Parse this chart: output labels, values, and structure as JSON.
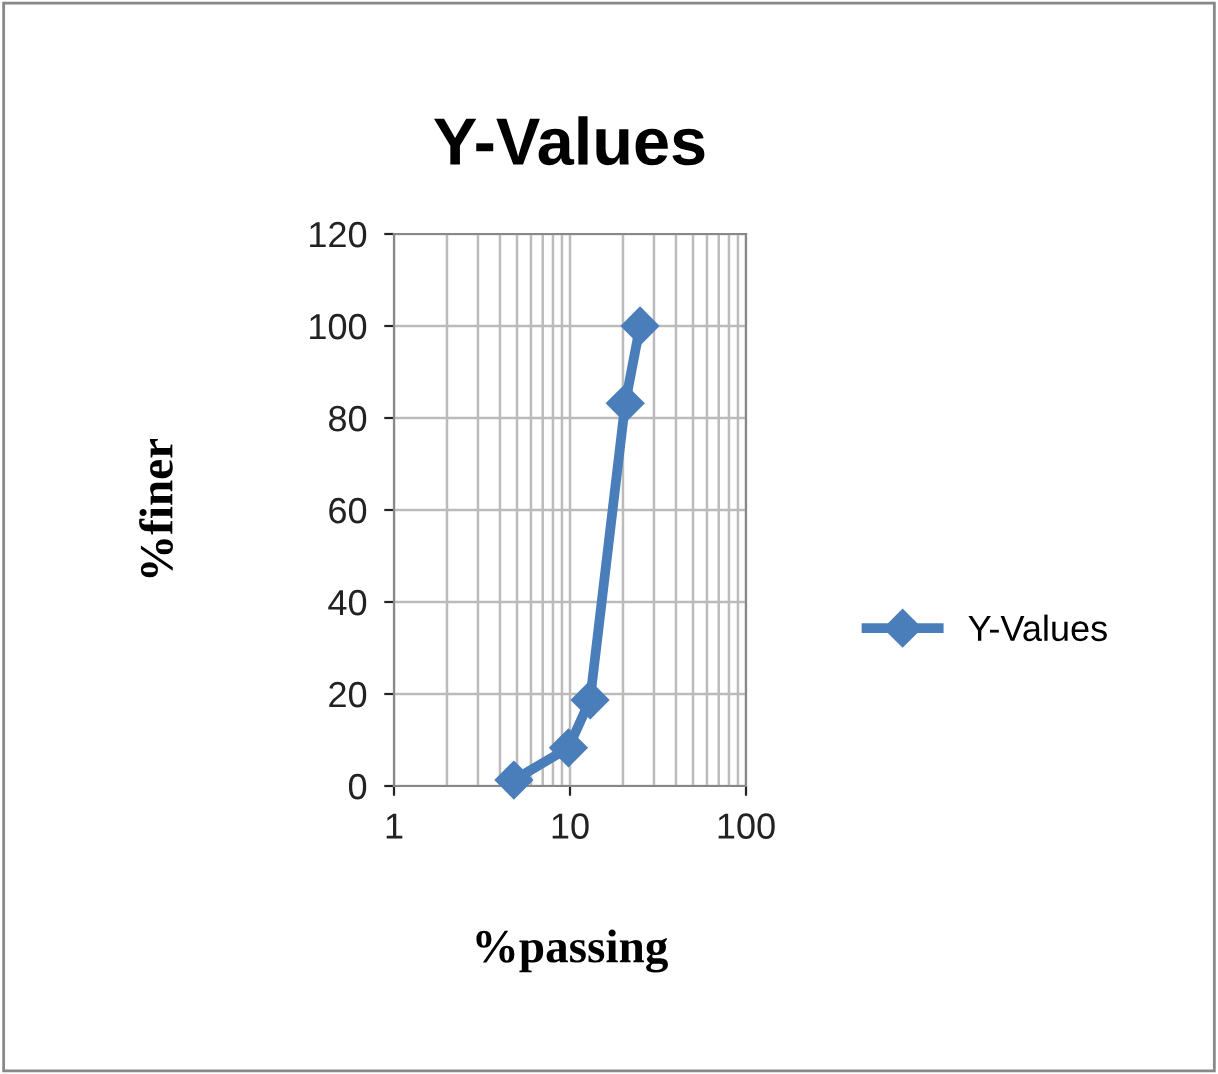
{
  "chart_data": {
    "type": "line",
    "title": "Y-Values",
    "xlabel": "%passing",
    "ylabel": "%finer",
    "x": [
      4.8,
      9.8,
      13,
      20.6,
      25
    ],
    "series": [
      {
        "name": "Y-Values",
        "color": "#4a7ebb",
        "values": [
          1.3,
          8.3,
          18.7,
          83.2,
          100
        ]
      }
    ],
    "log": "x",
    "xlim": [
      1,
      100
    ],
    "xticks": [
      1,
      10,
      100
    ],
    "ylim": [
      0,
      120
    ],
    "yticks": [
      0,
      20,
      40,
      60,
      80,
      100,
      120
    ],
    "grid": true,
    "legend": "right",
    "marker": "diamond",
    "line_style": "solid"
  }
}
